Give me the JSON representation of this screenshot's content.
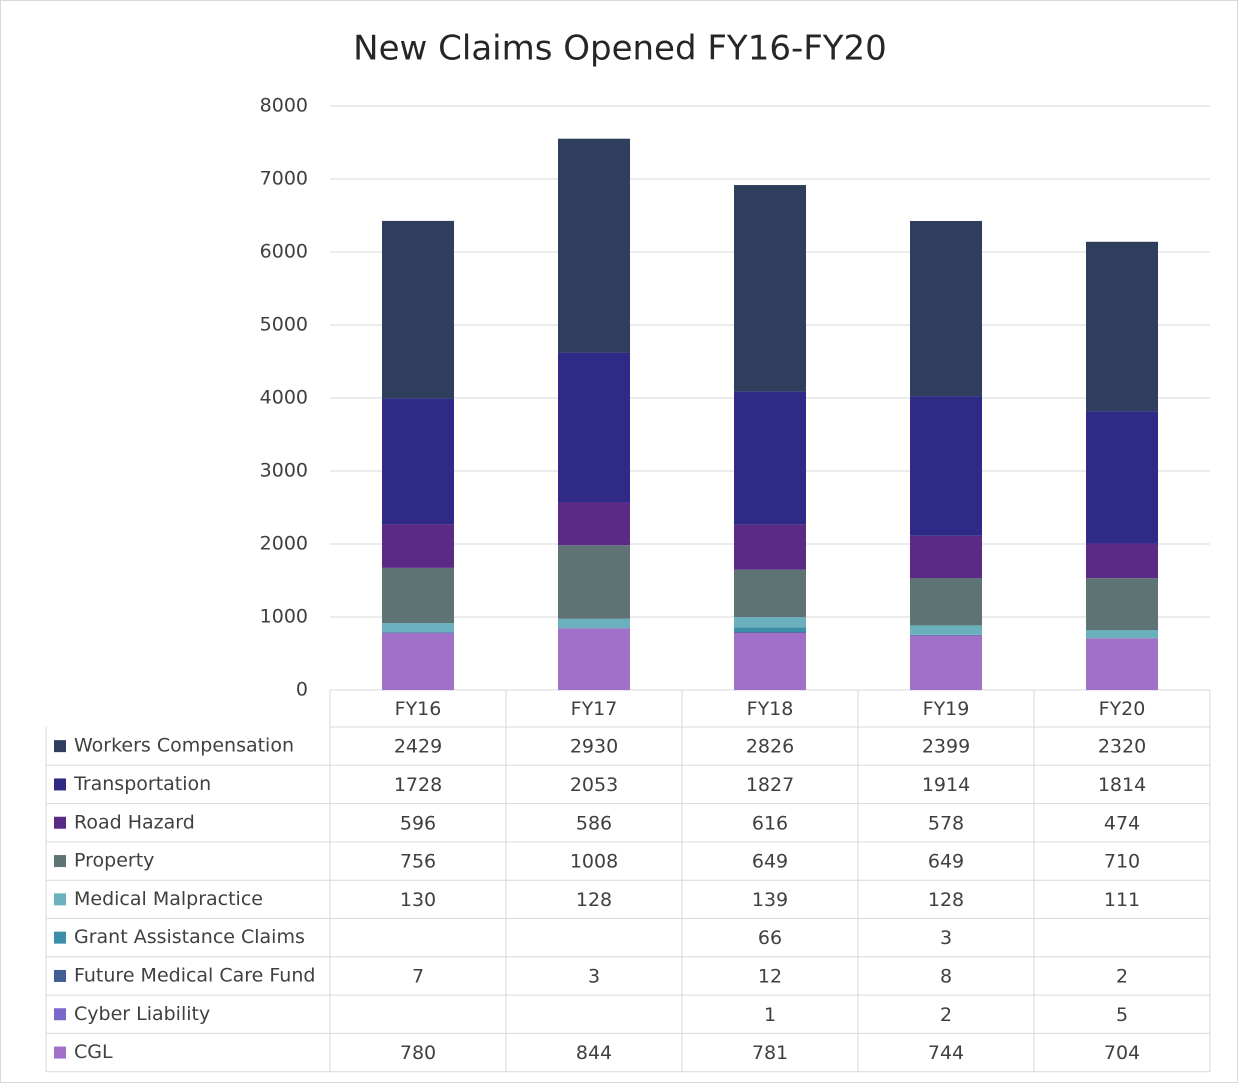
{
  "chart_data": {
    "type": "bar",
    "stacked": true,
    "title": "New Claims Opened FY16-FY20",
    "categories": [
      "FY16",
      "FY17",
      "FY18",
      "FY19",
      "FY20"
    ],
    "series": [
      {
        "name": "Workers Compensation",
        "color": "#2e3e5c",
        "values": [
          2429,
          2930,
          2826,
          2399,
          2320
        ]
      },
      {
        "name": "Transportation",
        "color": "#2e2a85",
        "values": [
          1728,
          2053,
          1827,
          1914,
          1814
        ]
      },
      {
        "name": "Road Hazard",
        "color": "#5b2a86",
        "values": [
          596,
          586,
          616,
          578,
          474
        ]
      },
      {
        "name": "Property",
        "color": "#5e7474",
        "values": [
          756,
          1008,
          649,
          649,
          710
        ]
      },
      {
        "name": "Medical Malpractice",
        "color": "#6bb0bd",
        "values": [
          130,
          128,
          139,
          128,
          111
        ]
      },
      {
        "name": "Grant Assistance Claims",
        "color": "#3d8ea8",
        "values": [
          null,
          null,
          66,
          3,
          null
        ]
      },
      {
        "name": "Future Medical Care Fund",
        "color": "#3f5f95",
        "values": [
          7,
          3,
          12,
          8,
          2
        ]
      },
      {
        "name": "Cyber Liability",
        "color": "#7b68c8",
        "values": [
          null,
          null,
          1,
          2,
          5
        ]
      },
      {
        "name": "CGL",
        "color": "#a070c8",
        "values": [
          780,
          844,
          781,
          744,
          704
        ]
      }
    ],
    "ylim": [
      0,
      8000
    ],
    "yticks": [
      0,
      1000,
      2000,
      3000,
      4000,
      5000,
      6000,
      7000,
      8000
    ],
    "grid": true
  }
}
